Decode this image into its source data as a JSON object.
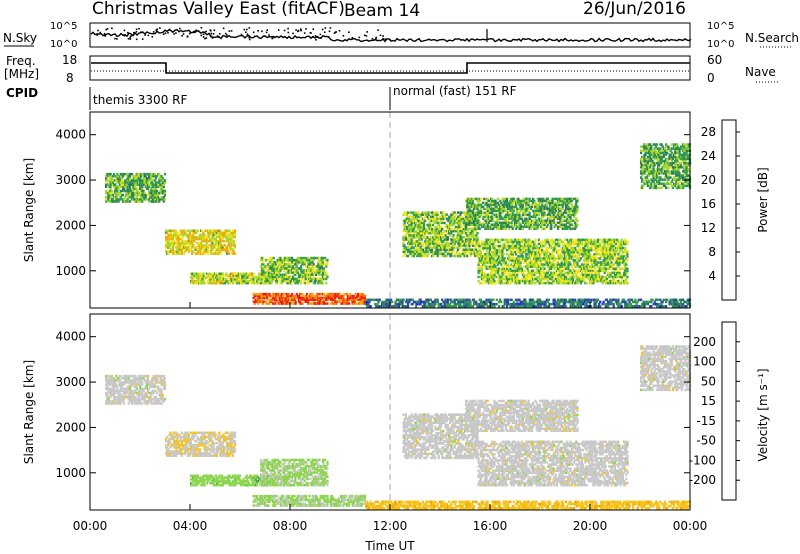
{
  "header": {
    "title": "Christmas Valley East (fitACF)",
    "beam": "Beam 14",
    "date": "26/Jun/2016"
  },
  "top_panels": {
    "nsky_label": "N.Sky",
    "nsearch_label": "N.Search",
    "noise_ticks": [
      "10^5",
      "10^0"
    ],
    "freq_label_1": "Freq.",
    "freq_label_2": "[MHz]",
    "freq_ticks": [
      "18",
      "8"
    ],
    "nave_label": "Nave",
    "nave_ticks": [
      "60",
      "0"
    ],
    "cpid_label": "CPID",
    "cpid_segments": [
      "themis 3300 RF",
      "normal (fast) 151 RF"
    ]
  },
  "colors": {
    "power_scale": [
      "#1a1aff",
      "#2d46a8",
      "#2e7d5a",
      "#2e9e4a",
      "#a7d829",
      "#f7e317",
      "#f6a60b",
      "#f3700c",
      "#ee1c11"
    ],
    "velocity_scale": [
      "#1f3fbf",
      "#3a6b52",
      "#46a64a",
      "#8bd64c",
      "#c8c8c8",
      "#f7c318",
      "#f5a10b",
      "#f2750f",
      "#ee1c11"
    ]
  },
  "chart_data": [
    {
      "type": "heatmap",
      "name": "power",
      "xlabel": "",
      "ylabel": "Slant Range [km]",
      "ylim": [
        180,
        4500
      ],
      "yticks": [
        1000,
        2000,
        3000,
        4000
      ],
      "xlim_hours": [
        0,
        24
      ],
      "xticks": [
        "00:00",
        "04:00",
        "08:00",
        "12:00",
        "16:00",
        "20:00",
        "00:00"
      ],
      "colorbar_label": "Power [dB]",
      "colorbar_ticks": [
        "4",
        "8",
        "12",
        "16",
        "20",
        "24",
        "28"
      ],
      "colorbar_range": [
        0,
        30
      ],
      "regions": [
        {
          "t0": 0.6,
          "t1": 3.0,
          "r0": 2500,
          "r1": 3150,
          "value": 12
        },
        {
          "t0": 3.0,
          "t1": 5.8,
          "r0": 1350,
          "r1": 1900,
          "value": 18
        },
        {
          "t0": 4.0,
          "t1": 7.5,
          "r0": 700,
          "r1": 950,
          "value": 16
        },
        {
          "t0": 6.8,
          "t1": 9.5,
          "r0": 700,
          "r1": 1300,
          "value": 14
        },
        {
          "t0": 6.5,
          "t1": 11.0,
          "r0": 250,
          "r1": 500,
          "value": 26
        },
        {
          "t0": 11.0,
          "t1": 24.0,
          "r0": 190,
          "r1": 380,
          "value": 8
        },
        {
          "t0": 12.5,
          "t1": 15.5,
          "r0": 1300,
          "r1": 2300,
          "value": 14
        },
        {
          "t0": 15.5,
          "t1": 21.5,
          "r0": 700,
          "r1": 1700,
          "value": 15
        },
        {
          "t0": 15.0,
          "t1": 19.5,
          "r0": 1900,
          "r1": 2600,
          "value": 12
        },
        {
          "t0": 22.0,
          "t1": 24.0,
          "r0": 2800,
          "r1": 3800,
          "value": 12
        }
      ]
    },
    {
      "type": "heatmap",
      "name": "velocity",
      "xlabel": "Time UT",
      "ylabel": "Slant Range [km]",
      "ylim": [
        180,
        4500
      ],
      "yticks": [
        1000,
        2000,
        3000,
        4000
      ],
      "xlim_hours": [
        0,
        24
      ],
      "xticks": [
        "00:00",
        "04:00",
        "08:00",
        "12:00",
        "16:00",
        "20:00",
        "00:00"
      ],
      "colorbar_label": "Velocity [m s⁻¹]",
      "colorbar_ticks": [
        "200",
        "100",
        "50",
        "15",
        "-15",
        "-50",
        "-100",
        "-200"
      ],
      "colorbar_range": [
        -250,
        250
      ],
      "regions": [
        {
          "t0": 0.6,
          "t1": 3.0,
          "r0": 2500,
          "r1": 3150,
          "value": 0
        },
        {
          "t0": 3.0,
          "t1": 5.8,
          "r0": 1350,
          "r1": 1900,
          "value": -20
        },
        {
          "t0": 4.0,
          "t1": 7.5,
          "r0": 700,
          "r1": 950,
          "value": 60
        },
        {
          "t0": 6.8,
          "t1": 9.5,
          "r0": 700,
          "r1": 1300,
          "value": 40
        },
        {
          "t0": 6.5,
          "t1": 11.0,
          "r0": 250,
          "r1": 500,
          "value": 40
        },
        {
          "t0": 11.0,
          "t1": 24.0,
          "r0": 190,
          "r1": 380,
          "value": -60
        },
        {
          "t0": 12.5,
          "t1": 15.5,
          "r0": 1300,
          "r1": 2300,
          "value": 0
        },
        {
          "t0": 15.5,
          "t1": 21.5,
          "r0": 700,
          "r1": 1700,
          "value": 0
        },
        {
          "t0": 15.0,
          "t1": 19.5,
          "r0": 1900,
          "r1": 2600,
          "value": 0
        },
        {
          "t0": 22.0,
          "t1": 24.0,
          "r0": 2800,
          "r1": 3800,
          "value": 0
        }
      ]
    }
  ]
}
